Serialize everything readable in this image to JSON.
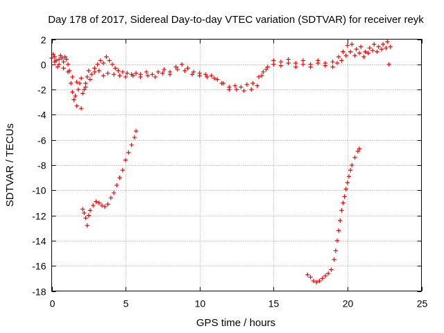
{
  "chart_data": {
    "type": "scatter",
    "title": "Day 178 of 2017, Sidereal Day-to-day VTEC variation (SDTVAR) for receiver reyk",
    "xlabel": "GPS time / hours",
    "ylabel": "SDTVAR / TECUs",
    "xlim": [
      0,
      25
    ],
    "ylim": [
      -18,
      2
    ],
    "xticks": [
      0,
      5,
      10,
      15,
      20,
      25
    ],
    "yticks": [
      2,
      0,
      -2,
      -4,
      -6,
      -8,
      -10,
      -12,
      -14,
      -16,
      -18
    ],
    "grid": true,
    "marker": "plus",
    "color": "#ff0000",
    "series": [
      {
        "name": "main-band",
        "points": [
          [
            0.0,
            0.5
          ],
          [
            0.1,
            0.8
          ],
          [
            0.2,
            0.6
          ],
          [
            0.3,
            0.3
          ],
          [
            0.4,
            -0.2
          ],
          [
            0.5,
            0.4
          ],
          [
            0.6,
            0.7
          ],
          [
            0.7,
            0.5
          ],
          [
            0.8,
            0.2
          ],
          [
            0.9,
            0.6
          ],
          [
            1.0,
            0.4
          ],
          [
            1.1,
            0.0
          ],
          [
            1.2,
            -0.5
          ],
          [
            1.3,
            -1.5
          ],
          [
            1.4,
            -2.2
          ],
          [
            1.5,
            -2.8
          ],
          [
            1.6,
            -2.5
          ],
          [
            1.7,
            -3.3
          ],
          [
            1.8,
            -2.0
          ],
          [
            1.9,
            -1.5
          ],
          [
            2.0,
            -3.5
          ],
          [
            2.1,
            -2.3
          ],
          [
            2.2,
            -2.0
          ],
          [
            2.3,
            -1.5
          ],
          [
            2.4,
            -1.0
          ],
          [
            2.5,
            -0.5
          ],
          [
            2.7,
            -0.8
          ],
          [
            2.9,
            -0.3
          ],
          [
            3.1,
            0.0
          ],
          [
            3.3,
            0.3
          ],
          [
            3.5,
            0.1
          ],
          [
            3.7,
            0.6
          ],
          [
            3.9,
            0.3
          ],
          [
            4.1,
            0.0
          ],
          [
            4.3,
            -0.3
          ],
          [
            4.5,
            -0.5
          ],
          [
            4.8,
            -0.6
          ],
          [
            5.1,
            -0.7
          ],
          [
            5.4,
            -0.8
          ],
          [
            5.7,
            -0.7
          ],
          [
            6.0,
            -0.8
          ],
          [
            6.4,
            -0.6
          ],
          [
            6.8,
            -0.8
          ],
          [
            7.2,
            -0.6
          ],
          [
            7.6,
            -0.4
          ],
          [
            8.0,
            -0.6
          ],
          [
            8.4,
            -0.2
          ],
          [
            8.8,
            0.0
          ],
          [
            9.2,
            -0.3
          ],
          [
            9.6,
            -0.6
          ],
          [
            10.0,
            -0.7
          ],
          [
            10.4,
            -0.8
          ],
          [
            10.8,
            -0.9
          ],
          [
            11.2,
            -1.2
          ],
          [
            11.6,
            -1.5
          ],
          [
            12.0,
            -1.8
          ],
          [
            12.4,
            -1.7
          ],
          [
            12.8,
            -1.8
          ],
          [
            13.2,
            -1.6
          ],
          [
            13.6,
            -1.5
          ],
          [
            14.0,
            -1.0
          ],
          [
            14.3,
            -0.6
          ],
          [
            14.6,
            -0.2
          ],
          [
            15.0,
            0.3
          ],
          [
            15.5,
            0.2
          ],
          [
            16.0,
            0.4
          ],
          [
            16.5,
            0.1
          ],
          [
            17.0,
            0.3
          ],
          [
            17.5,
            0.0
          ],
          [
            18.0,
            0.3
          ],
          [
            18.5,
            0.1
          ],
          [
            19.0,
            0.2
          ],
          [
            19.4,
            0.6
          ],
          [
            19.7,
            1.0
          ],
          [
            20.0,
            1.5
          ],
          [
            20.3,
            1.6
          ],
          [
            20.6,
            1.2
          ],
          [
            20.9,
            1.4
          ],
          [
            21.2,
            1.0
          ],
          [
            21.5,
            1.3
          ],
          [
            21.8,
            1.6
          ],
          [
            22.1,
            1.4
          ],
          [
            22.4,
            1.6
          ],
          [
            22.7,
            1.8
          ],
          [
            22.9,
            1.4
          ],
          [
            22.8,
            0.0
          ]
        ]
      },
      {
        "name": "main-band-lower",
        "points": [
          [
            0.2,
            0.2
          ],
          [
            0.5,
            0.0
          ],
          [
            0.8,
            -0.3
          ],
          [
            1.1,
            -0.6
          ],
          [
            1.4,
            -1.0
          ],
          [
            1.7,
            -1.4
          ],
          [
            2.0,
            -1.1
          ],
          [
            2.3,
            -1.8
          ],
          [
            2.6,
            -1.2
          ],
          [
            2.9,
            -0.6
          ],
          [
            3.2,
            -0.5
          ],
          [
            3.5,
            -0.9
          ],
          [
            3.8,
            -0.7
          ],
          [
            4.2,
            -0.8
          ],
          [
            4.6,
            -0.9
          ],
          [
            5.0,
            -1.0
          ],
          [
            5.5,
            -0.9
          ],
          [
            6.0,
            -1.0
          ],
          [
            6.5,
            -0.9
          ],
          [
            7.0,
            -1.0
          ],
          [
            7.5,
            -0.7
          ],
          [
            8.0,
            -0.8
          ],
          [
            8.5,
            -0.4
          ],
          [
            9.0,
            -0.5
          ],
          [
            9.5,
            -0.8
          ],
          [
            10.0,
            -0.9
          ],
          [
            10.5,
            -1.0
          ],
          [
            11.0,
            -1.1
          ],
          [
            11.5,
            -1.5
          ],
          [
            12.0,
            -2.0
          ],
          [
            12.5,
            -2.0
          ],
          [
            13.0,
            -2.1
          ],
          [
            13.5,
            -2.0
          ],
          [
            13.9,
            -1.7
          ],
          [
            14.2,
            -0.9
          ],
          [
            14.5,
            -0.4
          ],
          [
            15.0,
            0.0
          ],
          [
            15.5,
            -0.1
          ],
          [
            16.0,
            0.1
          ],
          [
            16.5,
            -0.2
          ],
          [
            17.0,
            0.0
          ],
          [
            17.5,
            -0.2
          ],
          [
            18.0,
            0.1
          ],
          [
            18.5,
            -0.1
          ],
          [
            19.0,
            -0.2
          ],
          [
            19.3,
            0.1
          ],
          [
            19.6,
            0.3
          ],
          [
            19.9,
            0.7
          ],
          [
            20.2,
            1.0
          ],
          [
            20.5,
            0.7
          ],
          [
            20.8,
            0.9
          ],
          [
            21.1,
            0.6
          ],
          [
            21.4,
            0.9
          ],
          [
            21.7,
            1.1
          ],
          [
            22.0,
            1.0
          ],
          [
            22.3,
            1.2
          ],
          [
            22.6,
            1.3
          ]
        ]
      },
      {
        "name": "first-drop",
        "points": [
          [
            2.1,
            -11.5
          ],
          [
            2.2,
            -11.8
          ],
          [
            2.3,
            -12.2
          ],
          [
            2.4,
            -12.8
          ],
          [
            2.5,
            -12.0
          ],
          [
            2.6,
            -11.6
          ],
          [
            2.8,
            -11.2
          ],
          [
            3.0,
            -10.9
          ],
          [
            3.2,
            -11.0
          ],
          [
            3.4,
            -11.2
          ],
          [
            3.6,
            -11.3
          ],
          [
            3.8,
            -11.1
          ],
          [
            4.0,
            -10.6
          ],
          [
            4.2,
            -10.2
          ],
          [
            4.4,
            -9.6
          ],
          [
            4.6,
            -9.0
          ],
          [
            4.8,
            -8.4
          ],
          [
            5.0,
            -7.6
          ],
          [
            5.2,
            -7.0
          ],
          [
            5.4,
            -6.4
          ],
          [
            5.6,
            -5.8
          ],
          [
            5.7,
            -5.3
          ]
        ]
      },
      {
        "name": "second-drop",
        "points": [
          [
            17.3,
            -16.7
          ],
          [
            17.5,
            -16.9
          ],
          [
            17.7,
            -17.2
          ],
          [
            17.9,
            -17.3
          ],
          [
            18.1,
            -17.2
          ],
          [
            18.3,
            -17.0
          ],
          [
            18.5,
            -16.8
          ],
          [
            18.7,
            -16.6
          ],
          [
            18.9,
            -16.3
          ],
          [
            19.1,
            -15.5
          ],
          [
            19.2,
            -14.8
          ],
          [
            19.3,
            -14.0
          ],
          [
            19.4,
            -13.2
          ],
          [
            19.5,
            -12.4
          ],
          [
            19.6,
            -11.6
          ],
          [
            19.7,
            -11.0
          ],
          [
            19.8,
            -10.5
          ],
          [
            19.9,
            -9.9
          ],
          [
            20.0,
            -9.4
          ],
          [
            20.1,
            -8.9
          ],
          [
            20.2,
            -8.4
          ],
          [
            20.3,
            -8.0
          ],
          [
            20.5,
            -7.4
          ],
          [
            20.7,
            -6.9
          ],
          [
            20.8,
            -6.7
          ]
        ]
      }
    ]
  }
}
